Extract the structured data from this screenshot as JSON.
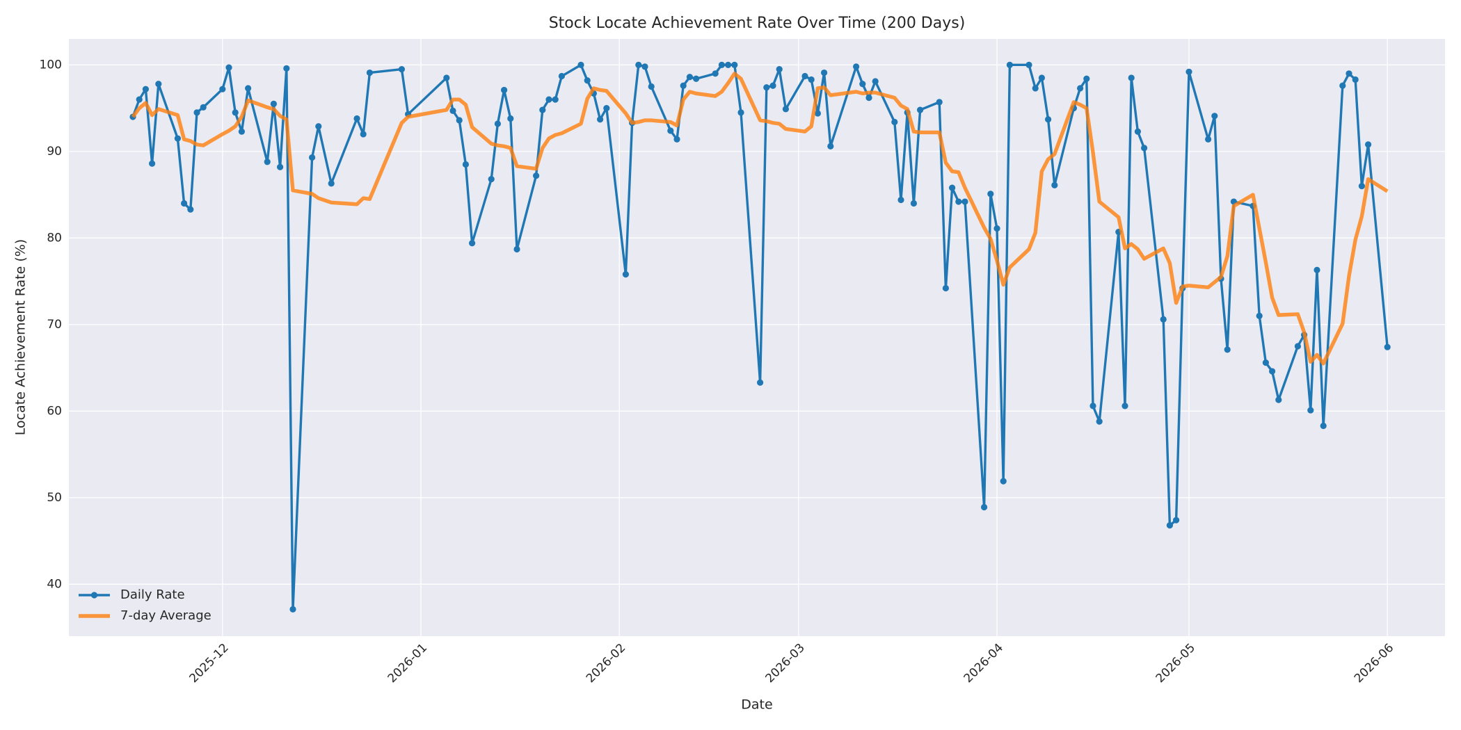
{
  "chart_data": {
    "type": "line",
    "title": "Stock Locate Achievement Rate Over Time (200 Days)",
    "x_label": "Date",
    "y_label": "Locate Achievement Rate (%)",
    "x": [
      "2025-11-17",
      "2025-11-18",
      "2025-11-19",
      "2025-11-20",
      "2025-11-21",
      "2025-11-24",
      "2025-11-25",
      "2025-11-26",
      "2025-11-27",
      "2025-11-28",
      "2025-12-01",
      "2025-12-02",
      "2025-12-03",
      "2025-12-04",
      "2025-12-05",
      "2025-12-08",
      "2025-12-09",
      "2025-12-10",
      "2025-12-11",
      "2025-12-12",
      "2025-12-15",
      "2025-12-16",
      "2025-12-18",
      "2025-12-22",
      "2025-12-23",
      "2025-12-24",
      "2025-12-29",
      "2025-12-30",
      "2026-01-05",
      "2026-01-06",
      "2026-01-07",
      "2026-01-08",
      "2026-01-09",
      "2026-01-12",
      "2026-01-13",
      "2026-01-14",
      "2026-01-15",
      "2026-01-16",
      "2026-01-19",
      "2026-01-20",
      "2026-01-21",
      "2026-01-22",
      "2026-01-23",
      "2026-01-26",
      "2026-01-27",
      "2026-01-28",
      "2026-01-29",
      "2026-01-30",
      "2026-02-02",
      "2026-02-03",
      "2026-02-04",
      "2026-02-05",
      "2026-02-06",
      "2026-02-09",
      "2026-02-10",
      "2026-02-11",
      "2026-02-12",
      "2026-02-13",
      "2026-02-16",
      "2026-02-17",
      "2026-02-18",
      "2026-02-19",
      "2026-02-20",
      "2026-02-23",
      "2026-02-24",
      "2026-02-25",
      "2026-02-26",
      "2026-02-27",
      "2026-03-02",
      "2026-03-03",
      "2026-03-04",
      "2026-03-05",
      "2026-03-06",
      "2026-03-10",
      "2026-03-11",
      "2026-03-12",
      "2026-03-13",
      "2026-03-16",
      "2026-03-17",
      "2026-03-18",
      "2026-03-19",
      "2026-03-20",
      "2026-03-23",
      "2026-03-24",
      "2026-03-25",
      "2026-03-26",
      "2026-03-27",
      "2026-03-30",
      "2026-03-31",
      "2026-04-01",
      "2026-04-02",
      "2026-04-03",
      "2026-04-06",
      "2026-04-07",
      "2026-04-08",
      "2026-04-09",
      "2026-04-10",
      "2026-04-13",
      "2026-04-14",
      "2026-04-15",
      "2026-04-16",
      "2026-04-17",
      "2026-04-20",
      "2026-04-21",
      "2026-04-22",
      "2026-04-23",
      "2026-04-24",
      "2026-04-27",
      "2026-04-28",
      "2026-04-29",
      "2026-04-30",
      "2026-05-01",
      "2026-05-04",
      "2026-05-05",
      "2026-05-06",
      "2026-05-07",
      "2026-05-08",
      "2026-05-11",
      "2026-05-12",
      "2026-05-13",
      "2026-05-14",
      "2026-05-15",
      "2026-05-18",
      "2026-05-19",
      "2026-05-20",
      "2026-05-21",
      "2026-05-22",
      "2026-05-25",
      "2026-05-26",
      "2026-05-27",
      "2026-05-28",
      "2026-05-29",
      "2026-06-01"
    ],
    "series": [
      {
        "name": "Daily Rate",
        "color": "#1f77b4",
        "marker": true,
        "values": [
          94.0,
          96.0,
          97.2,
          88.6,
          97.8,
          91.5,
          84.0,
          83.3,
          94.5,
          95.1,
          97.2,
          99.7,
          94.5,
          92.3,
          97.3,
          88.8,
          95.5,
          88.2,
          99.6,
          37.1,
          89.3,
          92.9,
          86.3,
          93.8,
          92.0,
          99.1,
          99.5,
          94.3,
          98.5,
          94.7,
          93.6,
          88.5,
          79.4,
          86.8,
          93.2,
          97.1,
          93.8,
          78.7,
          87.2,
          94.8,
          96.0,
          96.0,
          98.7,
          100,
          98.2,
          96.7,
          93.7,
          95.0,
          75.8,
          93.3,
          100,
          99.8,
          97.5,
          92.4,
          91.4,
          97.6,
          98.6,
          98.4,
          99.0,
          100,
          100,
          100,
          94.5,
          63.3,
          97.4,
          97.6,
          99.5,
          94.9,
          98.7,
          98.3,
          94.4,
          99.1,
          90.6,
          99.8,
          97.8,
          96.2,
          98.1,
          93.4,
          84.4,
          94.5,
          84.0,
          94.8,
          95.7,
          74.2,
          85.8,
          84.2,
          84.2,
          48.9,
          85.1,
          81.1,
          51.9,
          100,
          100,
          97.3,
          98.5,
          93.7,
          86.1,
          95.0,
          97.3,
          98.4,
          60.6,
          58.8,
          80.7,
          60.6,
          98.5,
          92.3,
          90.4,
          70.6,
          46.8,
          47.4,
          74.2,
          99.2,
          91.4,
          94.1,
          75.3,
          67.1,
          84.2,
          83.7,
          71.0,
          65.6,
          64.6,
          61.3,
          67.5,
          68.8,
          60.1,
          76.3,
          58.3,
          97.6,
          99.0,
          98.3,
          86.0,
          90.8,
          67.4
        ]
      },
      {
        "name": "7-day Average",
        "color": "#ff7f0e",
        "marker": false,
        "values": [
          94.0,
          95.0,
          95.6,
          94.2,
          94.9,
          94.2,
          91.4,
          91.2,
          90.8,
          90.7,
          92.0,
          92.4,
          92.9,
          94.0,
          95.9,
          95.1,
          94.9,
          94.1,
          93.7,
          85.5,
          85.1,
          84.6,
          84.1,
          83.9,
          84.6,
          84.5,
          93.3,
          94.0,
          94.8,
          96.0,
          96.0,
          95.4,
          92.8,
          90.9,
          90.7,
          90.6,
          90.4,
          88.3,
          88.0,
          90.4,
          91.5,
          91.9,
          92.1,
          93.2,
          96.1,
          97.3,
          97.1,
          97.0,
          94.4,
          93.3,
          93.4,
          93.6,
          93.6,
          93.4,
          93.0,
          96.0,
          96.9,
          96.7,
          96.4,
          96.9,
          97.9,
          99.0,
          98.4,
          93.6,
          93.5,
          93.3,
          93.2,
          92.6,
          92.3,
          92.9,
          97.3,
          97.4,
          96.5,
          96.9,
          96.7,
          96.8,
          96.8,
          96.2,
          95.3,
          94.9,
          92.3,
          92.2,
          92.2,
          88.7,
          87.7,
          87.6,
          85.8,
          81.2,
          79.9,
          77.4,
          74.6,
          76.6,
          78.7,
          80.6,
          87.7,
          89.1,
          89.7,
          95.7,
          95.4,
          95.0,
          89.9,
          84.2,
          82.4,
          78.8,
          79.3,
          78.7,
          77.6,
          78.8,
          77.1,
          72.5,
          74.4,
          74.5,
          74.3,
          74.9,
          75.5,
          77.9,
          83.7,
          85.0,
          81.1,
          77.2,
          73.1,
          71.1,
          71.2,
          69.1,
          65.7,
          66.5,
          65.5,
          70.1,
          75.6,
          79.8,
          82.5,
          86.8,
          85.4
        ]
      }
    ],
    "xlim": [
      "2025-11-07",
      "2026-06-10"
    ],
    "xticks": [
      {
        "value": "2025-12-01",
        "label": "2025-12"
      },
      {
        "value": "2026-01-01",
        "label": "2026-01"
      },
      {
        "value": "2026-02-01",
        "label": "2026-02"
      },
      {
        "value": "2026-03-01",
        "label": "2026-03"
      },
      {
        "value": "2026-04-01",
        "label": "2026-04"
      },
      {
        "value": "2026-05-01",
        "label": "2026-05"
      },
      {
        "value": "2026-06-01",
        "label": "2026-06"
      }
    ],
    "ylim": [
      34,
      103
    ],
    "yticks": [
      40,
      50,
      60,
      70,
      80,
      90,
      100
    ],
    "grid": true,
    "legend": "lower left"
  }
}
